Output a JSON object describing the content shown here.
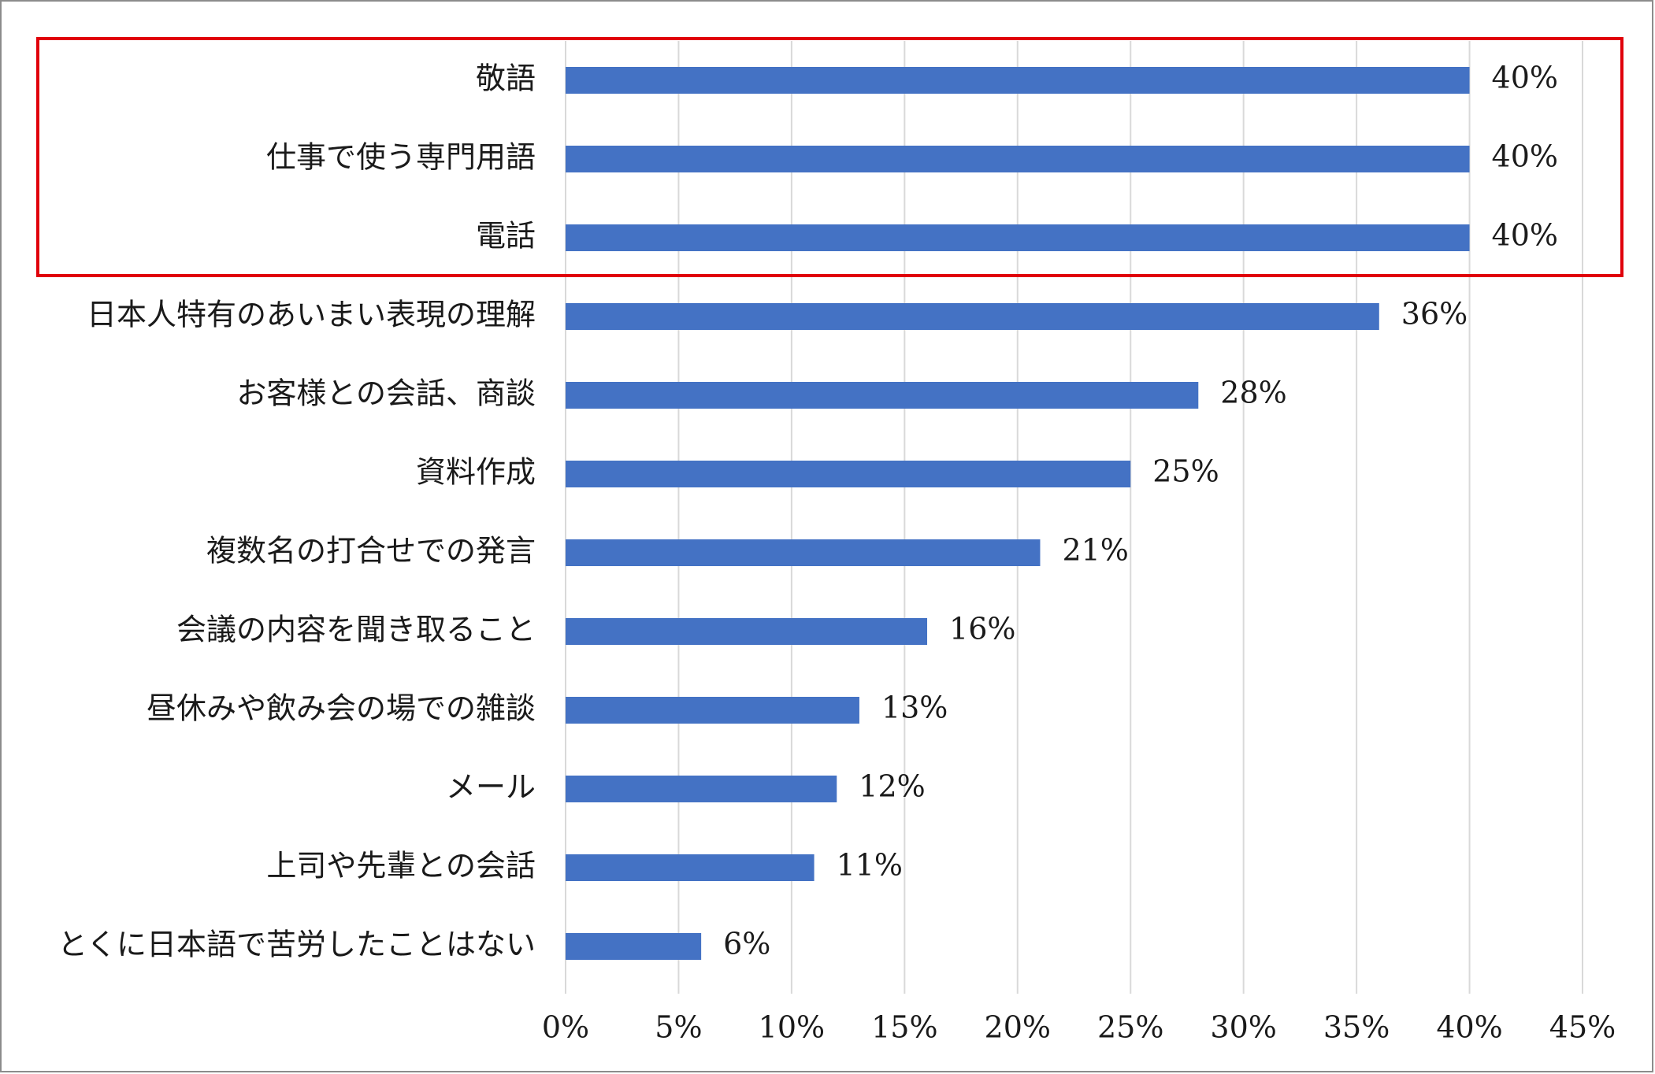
{
  "chart_data": {
    "type": "bar",
    "orientation": "horizontal",
    "categories": [
      "敬語",
      "仕事で使う専門用語",
      "電話",
      "日本人特有のあいまい表現の理解",
      "お客様との会話、商談",
      "資料作成",
      "複数名の打合せでの発言",
      "会議の内容を聞き取ること",
      "昼休みや飲み会の場での雑談",
      "メール",
      "上司や先輩との会話",
      "とくに日本語で苦労したことはない"
    ],
    "values": [
      40,
      40,
      40,
      36,
      28,
      25,
      21,
      16,
      13,
      12,
      11,
      6
    ],
    "value_labels": [
      "40%",
      "40%",
      "40%",
      "36%",
      "28%",
      "25%",
      "21%",
      "16%",
      "13%",
      "12%",
      "11%",
      "6%"
    ],
    "xlim": [
      0,
      45
    ],
    "x_ticks": [
      0,
      5,
      10,
      15,
      20,
      25,
      30,
      35,
      40,
      45
    ],
    "x_tick_labels": [
      "0%",
      "5%",
      "10%",
      "15%",
      "20%",
      "25%",
      "30%",
      "35%",
      "40%",
      "45%"
    ],
    "grid": "vertical",
    "highlight": {
      "indices": [
        0,
        1,
        2
      ],
      "style": "box",
      "color": "#e0000b"
    },
    "bar_color": "#4472c4",
    "grid_color": "#d9d9d9",
    "frame_color": "#8c8c8c",
    "title": "",
    "xlabel": "",
    "ylabel": ""
  }
}
